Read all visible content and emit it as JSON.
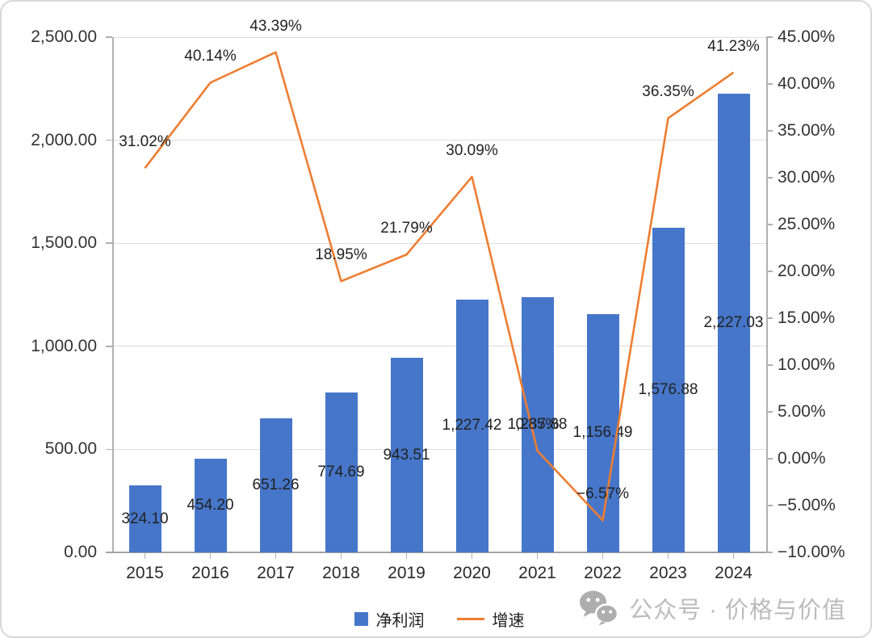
{
  "chart_data": {
    "type": "combo",
    "title": "",
    "categories": [
      "2015",
      "2016",
      "2017",
      "2018",
      "2019",
      "2020",
      "2021",
      "2022",
      "2023",
      "2024"
    ],
    "series": [
      {
        "name": "净利润",
        "type": "bar",
        "color": "#4676C9",
        "values": [
          324.1,
          454.2,
          651.26,
          774.69,
          943.51,
          1227.42,
          1237.88,
          1156.49,
          1576.88,
          2227.03
        ],
        "labels": [
          "324.10",
          "454.20",
          "651.26",
          "774.69",
          "943.51",
          "1,227.42",
          "1,237.88",
          "1,156.49",
          "1,576.88",
          "2,227.03"
        ]
      },
      {
        "name": "增速",
        "type": "line",
        "color": "#ED7D31",
        "values": [
          31.02,
          40.14,
          43.39,
          18.95,
          21.79,
          30.09,
          0.85,
          -6.57,
          36.35,
          41.23
        ],
        "labels": [
          "31.02%",
          "40.14%",
          "43.39%",
          "18.95%",
          "21.79%",
          "30.09%",
          "0.85%",
          "−6.57%",
          "36.35%",
          "41.23%"
        ]
      }
    ],
    "left_axis": {
      "min": 0,
      "max": 2500,
      "step": 500,
      "tick_labels": [
        "2,500.00",
        "2,000.00",
        "1,500.00",
        "1,000.00",
        "500.00",
        "0.00"
      ]
    },
    "right_axis": {
      "min": -10,
      "max": 45,
      "step": 5,
      "tick_labels": [
        "45.00%",
        "40.00%",
        "35.00%",
        "30.00%",
        "25.00%",
        "20.00%",
        "15.00%",
        "10.00%",
        "5.00%",
        "0.00%",
        "−5.00%",
        "−10.00%"
      ]
    },
    "grid": true,
    "legend_position": "bottom"
  },
  "colors": {
    "bar": "#4676C9",
    "line": "#ED7D31",
    "grid": "#dcdcdc",
    "axis": "#b0b0b0",
    "baseline": "#a3a3a3",
    "label_text": "#222222",
    "watermark": "#bcbcbc"
  },
  "watermark": {
    "icon": "wechat-icon",
    "text": "公众号 · 价格与价值"
  }
}
